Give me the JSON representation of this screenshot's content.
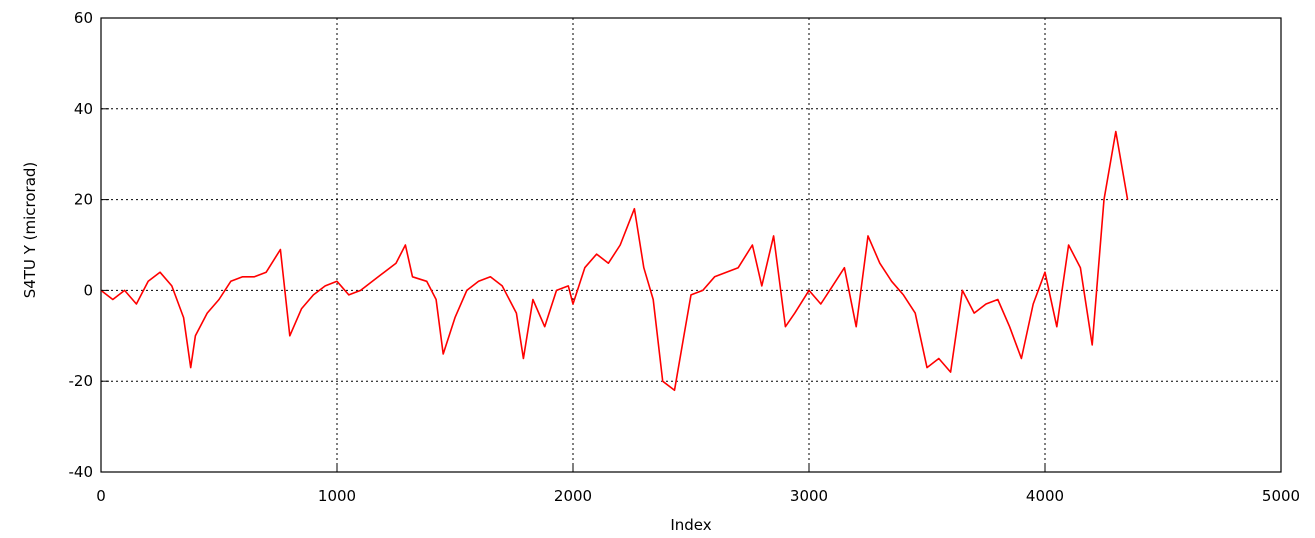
{
  "chart_data": {
    "type": "line",
    "xlabel": "Index",
    "ylabel": "S4TU Y (microrad)",
    "xlim": [
      0,
      5000
    ],
    "ylim": [
      -40,
      60
    ],
    "xticks": [
      0,
      1000,
      2000,
      3000,
      4000,
      5000
    ],
    "yticks": [
      -40,
      -20,
      0,
      20,
      40,
      60
    ],
    "grid": "dotted, at major ticks",
    "series_color": "#ff0000",
    "series": [
      {
        "x": [
          0,
          50,
          100,
          150,
          200,
          250,
          300,
          350,
          380,
          400,
          450,
          500,
          550,
          600,
          650,
          700,
          760,
          800,
          850,
          900,
          950,
          1000,
          1050,
          1100,
          1150,
          1200,
          1250,
          1290,
          1320,
          1380,
          1420,
          1450,
          1500,
          1550,
          1600,
          1650,
          1700,
          1760,
          1790,
          1830,
          1880,
          1930,
          1980,
          2000,
          2050,
          2100,
          2150,
          2200,
          2260,
          2300,
          2340,
          2380,
          2430,
          2470,
          2500,
          2550,
          2600,
          2650,
          2700,
          2760,
          2800,
          2850,
          2900,
          2940,
          3000,
          3050,
          3100,
          3150,
          3200,
          3250,
          3300,
          3350,
          3400,
          3450,
          3500,
          3550,
          3600,
          3650,
          3700,
          3750,
          3800,
          3850,
          3900,
          3950,
          4000,
          4050,
          4100,
          4150,
          4200,
          4250,
          4300,
          4350
        ],
        "y": [
          0,
          -2,
          0,
          -3,
          2,
          4,
          1,
          -6,
          -17,
          -10,
          -5,
          -2,
          2,
          3,
          3,
          4,
          9,
          -10,
          -4,
          -1,
          1,
          2,
          -1,
          0,
          2,
          4,
          6,
          10,
          3,
          2,
          -2,
          -14,
          -6,
          0,
          2,
          3,
          1,
          -5,
          -15,
          -2,
          -8,
          0,
          1,
          -3,
          5,
          8,
          6,
          10,
          18,
          5,
          -2,
          -20,
          -22,
          -10,
          -1,
          0,
          3,
          4,
          5,
          10,
          1,
          12,
          -8,
          -5,
          0,
          -3,
          1,
          5,
          -8,
          12,
          6,
          2,
          -1,
          -5,
          -17,
          -15,
          -18,
          0,
          -5,
          -3,
          -2,
          -8,
          -15,
          -3,
          4,
          -8,
          10,
          5,
          -12,
          20,
          35,
          20
        ]
      }
    ]
  }
}
